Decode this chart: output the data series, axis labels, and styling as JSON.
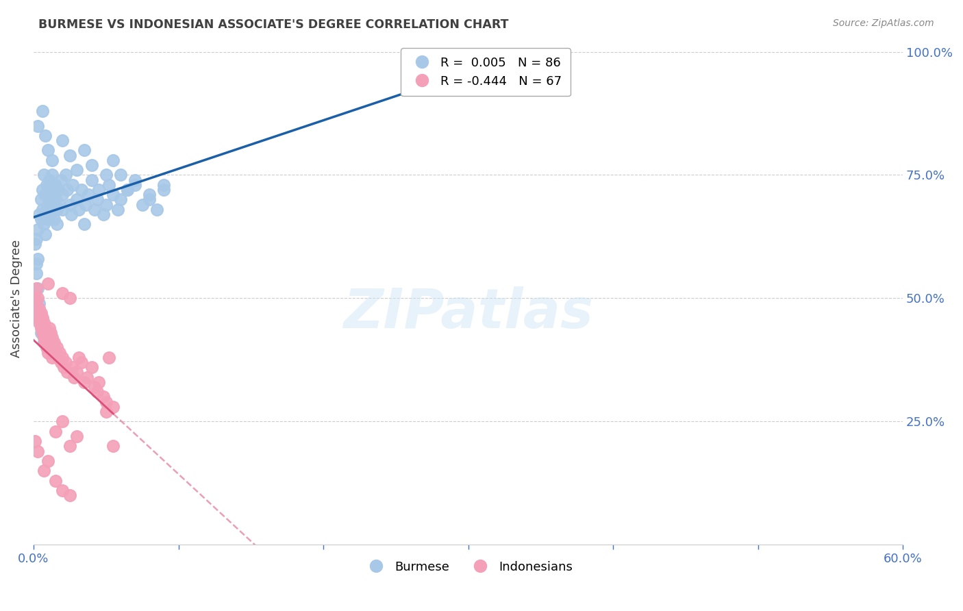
{
  "title": "BURMESE VS INDONESIAN ASSOCIATE'S DEGREE CORRELATION CHART",
  "source": "Source: ZipAtlas.com",
  "ylabel": "Associate's Degree",
  "burmese_color": "#a8c8e8",
  "indonesian_color": "#f4a0b8",
  "burmese_line_color": "#1a5fa8",
  "indonesian_line_color": "#d9507a",
  "burmese_R": "0.005",
  "burmese_N": "86",
  "indonesian_R": "-0.444",
  "indonesian_N": "67",
  "legend_burmese": "Burmese",
  "legend_indonesian": "Indonesians",
  "watermark": "ZIPatlas",
  "background_color": "#ffffff",
  "grid_color": "#cccccc",
  "axis_color": "#4472c4",
  "title_color": "#404040",
  "source_color": "#888888",
  "burmese_points_x": [
    0.002,
    0.003,
    0.003,
    0.004,
    0.005,
    0.005,
    0.006,
    0.006,
    0.007,
    0.007,
    0.008,
    0.008,
    0.009,
    0.009,
    0.01,
    0.01,
    0.011,
    0.011,
    0.012,
    0.012,
    0.013,
    0.013,
    0.014,
    0.014,
    0.015,
    0.015,
    0.016,
    0.016,
    0.017,
    0.018,
    0.019,
    0.02,
    0.02,
    0.022,
    0.023,
    0.025,
    0.026,
    0.027,
    0.03,
    0.031,
    0.033,
    0.035,
    0.036,
    0.038,
    0.04,
    0.042,
    0.044,
    0.045,
    0.048,
    0.05,
    0.052,
    0.055,
    0.058,
    0.06,
    0.065,
    0.07,
    0.075,
    0.08,
    0.085,
    0.09,
    0.001,
    0.002,
    0.002,
    0.003,
    0.004,
    0.004,
    0.005,
    0.005,
    0.007,
    0.003,
    0.006,
    0.008,
    0.01,
    0.013,
    0.02,
    0.025,
    0.03,
    0.035,
    0.04,
    0.05,
    0.055,
    0.06,
    0.065,
    0.07,
    0.08,
    0.09
  ],
  "burmese_points_y": [
    0.62,
    0.58,
    0.64,
    0.67,
    0.7,
    0.66,
    0.72,
    0.68,
    0.75,
    0.65,
    0.71,
    0.63,
    0.68,
    0.73,
    0.69,
    0.66,
    0.74,
    0.7,
    0.67,
    0.72,
    0.75,
    0.68,
    0.71,
    0.66,
    0.73,
    0.7,
    0.68,
    0.65,
    0.72,
    0.69,
    0.74,
    0.71,
    0.68,
    0.75,
    0.72,
    0.69,
    0.67,
    0.73,
    0.7,
    0.68,
    0.72,
    0.65,
    0.69,
    0.71,
    0.74,
    0.68,
    0.7,
    0.72,
    0.67,
    0.69,
    0.73,
    0.71,
    0.68,
    0.7,
    0.72,
    0.74,
    0.69,
    0.71,
    0.68,
    0.73,
    0.61,
    0.57,
    0.55,
    0.52,
    0.49,
    0.47,
    0.45,
    0.43,
    0.41,
    0.85,
    0.88,
    0.83,
    0.8,
    0.78,
    0.82,
    0.79,
    0.76,
    0.8,
    0.77,
    0.75,
    0.78,
    0.75,
    0.72,
    0.73,
    0.7,
    0.72
  ],
  "indonesian_points_x": [
    0.001,
    0.001,
    0.002,
    0.002,
    0.003,
    0.003,
    0.004,
    0.004,
    0.005,
    0.005,
    0.006,
    0.006,
    0.007,
    0.007,
    0.008,
    0.008,
    0.009,
    0.009,
    0.01,
    0.01,
    0.011,
    0.011,
    0.012,
    0.012,
    0.013,
    0.013,
    0.014,
    0.015,
    0.016,
    0.017,
    0.018,
    0.019,
    0.02,
    0.021,
    0.022,
    0.023,
    0.025,
    0.027,
    0.028,
    0.03,
    0.031,
    0.033,
    0.035,
    0.037,
    0.04,
    0.042,
    0.044,
    0.045,
    0.048,
    0.05,
    0.052,
    0.055,
    0.001,
    0.003,
    0.007,
    0.01,
    0.015,
    0.02,
    0.025,
    0.015,
    0.02,
    0.025,
    0.03,
    0.05,
    0.055,
    0.01,
    0.02
  ],
  "indonesian_points_y": [
    0.5,
    0.48,
    0.52,
    0.47,
    0.5,
    0.46,
    0.48,
    0.45,
    0.47,
    0.44,
    0.46,
    0.43,
    0.45,
    0.42,
    0.44,
    0.41,
    0.43,
    0.4,
    0.42,
    0.39,
    0.44,
    0.41,
    0.43,
    0.4,
    0.42,
    0.38,
    0.41,
    0.39,
    0.4,
    0.38,
    0.39,
    0.37,
    0.38,
    0.36,
    0.37,
    0.35,
    0.5,
    0.36,
    0.34,
    0.35,
    0.38,
    0.37,
    0.33,
    0.34,
    0.36,
    0.32,
    0.31,
    0.33,
    0.3,
    0.29,
    0.38,
    0.28,
    0.21,
    0.19,
    0.15,
    0.17,
    0.13,
    0.11,
    0.1,
    0.23,
    0.25,
    0.2,
    0.22,
    0.27,
    0.2,
    0.53,
    0.51
  ]
}
